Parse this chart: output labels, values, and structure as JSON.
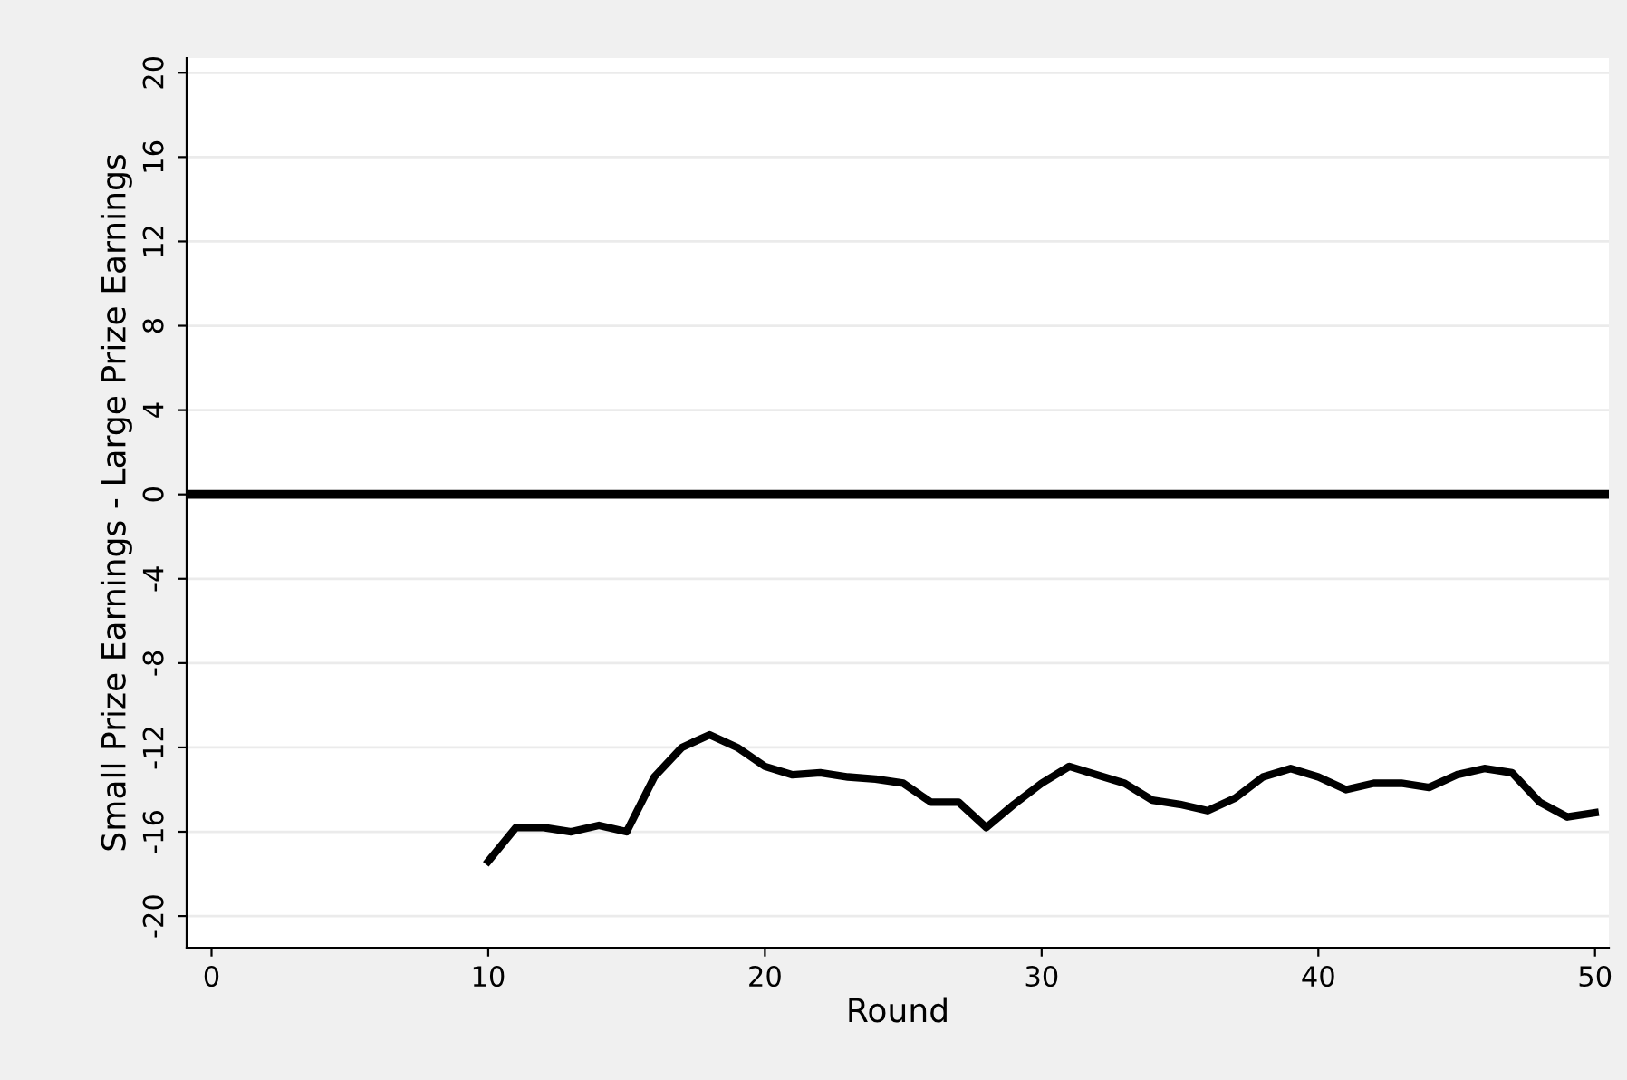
{
  "chart_data": {
    "type": "line",
    "xlabel": "Round",
    "ylabel": "Small Prize Earnings - Large Prize Earnings",
    "x": [
      10,
      11,
      12,
      13,
      14,
      15,
      16,
      17,
      18,
      19,
      20,
      21,
      22,
      23,
      24,
      25,
      26,
      27,
      28,
      29,
      30,
      31,
      32,
      33,
      34,
      35,
      36,
      37,
      38,
      39,
      40,
      41,
      42,
      43,
      44,
      45,
      46,
      47,
      48,
      49,
      50
    ],
    "series": [
      {
        "color": "#000000",
        "values": [
          -17.4,
          -15.8,
          -15.8,
          -16.0,
          -15.7,
          -16.0,
          -13.4,
          -12.0,
          -11.4,
          -12.0,
          -12.9,
          -13.3,
          -13.2,
          -13.4,
          -13.5,
          -13.7,
          -14.6,
          -14.6,
          -15.8,
          -14.7,
          -13.7,
          -12.9,
          -13.3,
          -13.7,
          -14.5,
          -14.7,
          -15.0,
          -14.4,
          -13.4,
          -13.0,
          -13.4,
          -14.0,
          -13.7,
          -13.7,
          -13.9,
          -13.3,
          -13.0,
          -13.2,
          -14.6,
          -15.3,
          -15.1
        ]
      }
    ],
    "xlim": [
      -0.9,
      50.5
    ],
    "xticks": [
      0,
      10,
      20,
      30,
      40,
      50
    ],
    "ylim": [
      -21.5,
      20.7
    ],
    "yticks": [
      -20,
      -16,
      -12,
      -8,
      -4,
      0,
      4,
      8,
      12,
      16,
      20
    ],
    "ref_lines": [
      {
        "axis": "y",
        "value": 0,
        "color": "#000000"
      }
    ],
    "grid": "y",
    "legend": false,
    "marker": "none",
    "line_style": "solid"
  }
}
